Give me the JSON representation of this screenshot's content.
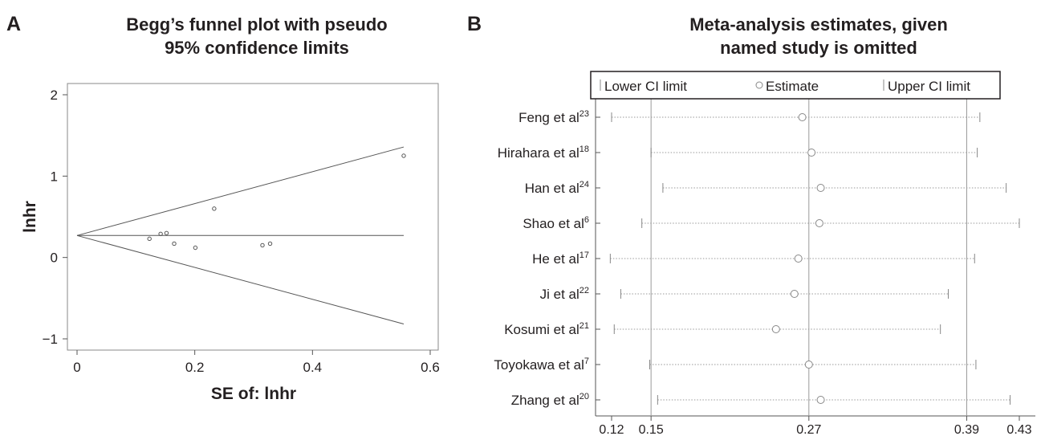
{
  "panels": {
    "A": {
      "letter": "A",
      "title_line1": "Begg’s funnel plot with pseudo",
      "title_line2": "95% confidence limits"
    },
    "B": {
      "letter": "B",
      "title_line1": "Meta-analysis estimates, given",
      "title_line2": "named study is omitted"
    }
  },
  "chart_data": [
    {
      "type": "scatter",
      "title": "Begg’s funnel plot with pseudo 95% confidence limits",
      "xlabel": "SE of: lnhr",
      "ylabel": "lnhr",
      "xlim": [
        0,
        0.6
      ],
      "ylim": [
        -1,
        2
      ],
      "xticks": [
        "0",
        "0.2",
        "0.4",
        "0.6"
      ],
      "yticks": [
        "−1",
        "0",
        "1",
        "2"
      ],
      "pooled_estimate": 0.27,
      "max_se": 0.555,
      "points": [
        {
          "x": 0.123,
          "y": 0.23
        },
        {
          "x": 0.142,
          "y": 0.29
        },
        {
          "x": 0.152,
          "y": 0.3
        },
        {
          "x": 0.165,
          "y": 0.17
        },
        {
          "x": 0.201,
          "y": 0.12
        },
        {
          "x": 0.233,
          "y": 0.6
        },
        {
          "x": 0.315,
          "y": 0.15
        },
        {
          "x": 0.328,
          "y": 0.17
        },
        {
          "x": 0.555,
          "y": 1.25
        }
      ]
    },
    {
      "type": "forest",
      "title": "Meta-analysis estimates, given named study is omitted",
      "legend": [
        "Lower CI limit",
        "Estimate",
        "Upper CI limit"
      ],
      "legend_position": "top",
      "xticks": [
        "0.12",
        "0.15",
        "0.27",
        "0.39",
        "0.43"
      ],
      "reference_lines": [
        0.15,
        0.27,
        0.39
      ],
      "xlim": [
        0.12,
        0.43
      ],
      "studies": [
        {
          "name": "Feng et al",
          "ref": "23",
          "lower": 0.12,
          "estimate": 0.265,
          "upper": 0.4
        },
        {
          "name": "Hirahara et al",
          "ref": "18",
          "lower": 0.15,
          "estimate": 0.272,
          "upper": 0.398
        },
        {
          "name": "Han et al",
          "ref": "24",
          "lower": 0.159,
          "estimate": 0.279,
          "upper": 0.42
        },
        {
          "name": "Shao et al",
          "ref": "6",
          "lower": 0.143,
          "estimate": 0.278,
          "upper": 0.43
        },
        {
          "name": "He et al",
          "ref": "17",
          "lower": 0.119,
          "estimate": 0.262,
          "upper": 0.396
        },
        {
          "name": "Ji et al",
          "ref": "22",
          "lower": 0.127,
          "estimate": 0.259,
          "upper": 0.376
        },
        {
          "name": "Kosumi et al",
          "ref": "21",
          "lower": 0.122,
          "estimate": 0.245,
          "upper": 0.37
        },
        {
          "name": "Toyokawa et al",
          "ref": "7",
          "lower": 0.149,
          "estimate": 0.27,
          "upper": 0.397
        },
        {
          "name": "Zhang et al",
          "ref": "20",
          "lower": 0.155,
          "estimate": 0.279,
          "upper": 0.423
        }
      ]
    }
  ]
}
